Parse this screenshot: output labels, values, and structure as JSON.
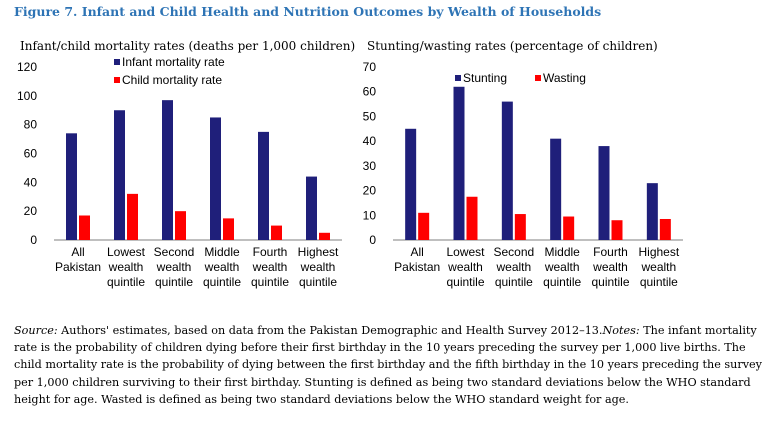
{
  "figure_title": "Figure 7. Infant and Child Health and Nutrition Outcomes by Wealth of Households",
  "notes": {
    "source_label": "Source:",
    "source_text": " Authors' estimates, based on data from the Pakistan Demographic and Health Survey 2012–13.",
    "notes_label": "Notes:",
    "notes_text": " The infant mortality rate is the probability of children dying before their first birthday in the 10 years preceding the survey per 1,000 live births. The child mortality rate is the probability of dying between the first birthday and the fifth birthday in the 10 years preceding the survey per 1,000 children surviving to their first birthday. Stunting is defined as being two standard deviations below the WHO standard height for age. Wasted is defined as being two standard deviations below the WHO standard weight for age."
  },
  "colors": {
    "primary": "#1f1f7a",
    "secondary": "#ff0000",
    "title": "#2e74b5"
  },
  "chart_data": [
    {
      "type": "bar",
      "title": "Infant/child mortality rates (deaths per 1,000 children)",
      "categories": [
        [
          "All",
          "Pakistan"
        ],
        [
          "Lowest",
          "wealth",
          "quintile"
        ],
        [
          "Second",
          "wealth",
          "quintile"
        ],
        [
          "Middle",
          "wealth",
          "quintile"
        ],
        [
          "Fourth",
          "wealth",
          "quintile"
        ],
        [
          "Highest",
          "wealth",
          "quintile"
        ]
      ],
      "series": [
        {
          "name": "Infant mortality rate",
          "values": [
            74,
            90,
            97,
            85,
            75,
            44
          ],
          "color": "#1f1f7a"
        },
        {
          "name": "Child mortality rate",
          "values": [
            17,
            32,
            20,
            15,
            10,
            5
          ],
          "color": "#ff0000"
        }
      ],
      "ylim": [
        0,
        120
      ],
      "yticks": [
        0,
        20,
        40,
        60,
        80,
        100,
        120
      ],
      "grid": false,
      "legend": "top-center"
    },
    {
      "type": "bar",
      "title": "Stunting/wasting rates (percentage of children)",
      "categories": [
        [
          "All",
          "Pakistan"
        ],
        [
          "Lowest",
          "wealth",
          "quintile"
        ],
        [
          "Second",
          "wealth",
          "quintile"
        ],
        [
          "Middle",
          "wealth",
          "quintile"
        ],
        [
          "Fourth",
          "wealth",
          "quintile"
        ],
        [
          "Highest",
          "wealth",
          "quintile"
        ]
      ],
      "series": [
        {
          "name": "Stunting",
          "values": [
            45,
            62,
            56,
            41,
            38,
            23
          ],
          "color": "#1f1f7a"
        },
        {
          "name": "Wasting",
          "values": [
            11,
            17.5,
            10.5,
            9.5,
            8,
            8.5
          ],
          "color": "#ff0000"
        }
      ],
      "ylim": [
        0,
        70
      ],
      "yticks": [
        0,
        10,
        20,
        30,
        40,
        50,
        60,
        70
      ],
      "grid": false,
      "legend": "top-center"
    }
  ]
}
